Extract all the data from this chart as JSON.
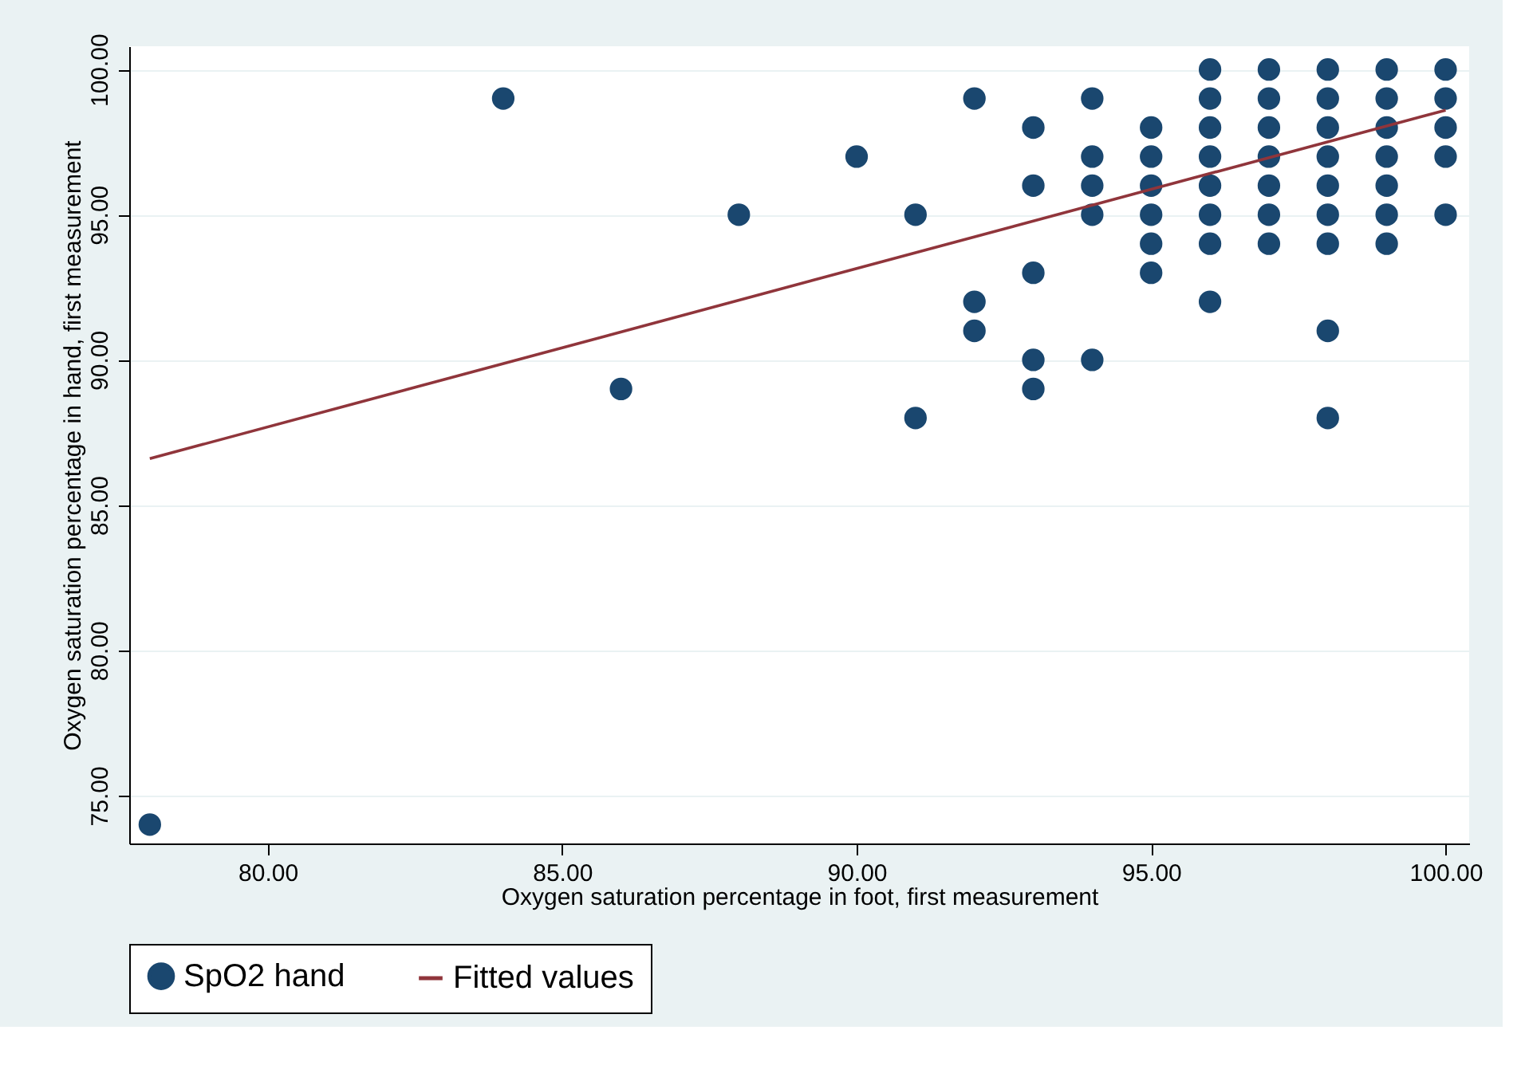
{
  "chart_data": {
    "type": "scatter",
    "xlabel": "Oxygen saturation percentage in foot, first measurement",
    "ylabel": "Oxygen saturation percentage in hand, first measurement",
    "xlim": [
      77.65,
      100.4
    ],
    "ylim": [
      73.35,
      100.8
    ],
    "xticks": [
      {
        "value": 80,
        "label": "80.00"
      },
      {
        "value": 85,
        "label": "85.00"
      },
      {
        "value": 90,
        "label": "90.00"
      },
      {
        "value": 95,
        "label": "95.00"
      },
      {
        "value": 100,
        "label": "100.00"
      }
    ],
    "yticks": [
      {
        "value": 75,
        "label": "75.00"
      },
      {
        "value": 80,
        "label": "80.00"
      },
      {
        "value": 85,
        "label": "85.00"
      },
      {
        "value": 90,
        "label": "90.00"
      },
      {
        "value": 95,
        "label": "95.00"
      },
      {
        "value": 100,
        "label": "100.00"
      }
    ],
    "grid": "y",
    "legend": "bottom",
    "series": [
      {
        "name": "SpO2 hand",
        "type": "scatter",
        "marker": "circle",
        "color": "#1a476f",
        "x": [
          78,
          84,
          86,
          88,
          90,
          91,
          91,
          92,
          92,
          92,
          93,
          93,
          93,
          93,
          93,
          94,
          94,
          94,
          94,
          94,
          95,
          95,
          95,
          95,
          95,
          95,
          96,
          96,
          96,
          96,
          96,
          96,
          96,
          96,
          97,
          97,
          97,
          97,
          97,
          97,
          97,
          98,
          98,
          98,
          98,
          98,
          98,
          98,
          98,
          98,
          99,
          99,
          99,
          99,
          99,
          99,
          99,
          100,
          100,
          100,
          100,
          100
        ],
        "values": [
          74,
          99,
          89,
          95,
          97,
          95,
          88,
          99,
          92,
          91,
          98,
          96,
          93,
          90,
          89,
          99,
          97,
          96,
          95,
          90,
          98,
          97,
          96,
          95,
          94,
          93,
          100,
          99,
          98,
          97,
          96,
          95,
          94,
          92,
          100,
          99,
          98,
          97,
          96,
          95,
          94,
          100,
          99,
          98,
          97,
          96,
          95,
          94,
          91,
          88,
          100,
          99,
          98,
          97,
          96,
          95,
          94,
          100,
          99,
          98,
          97,
          95
        ]
      },
      {
        "name": "Fitted values",
        "type": "line",
        "color": "#90353b",
        "line_style": "solid",
        "marker": "none",
        "x": [
          78,
          100
        ],
        "values": [
          86.6,
          98.6
        ]
      }
    ]
  }
}
